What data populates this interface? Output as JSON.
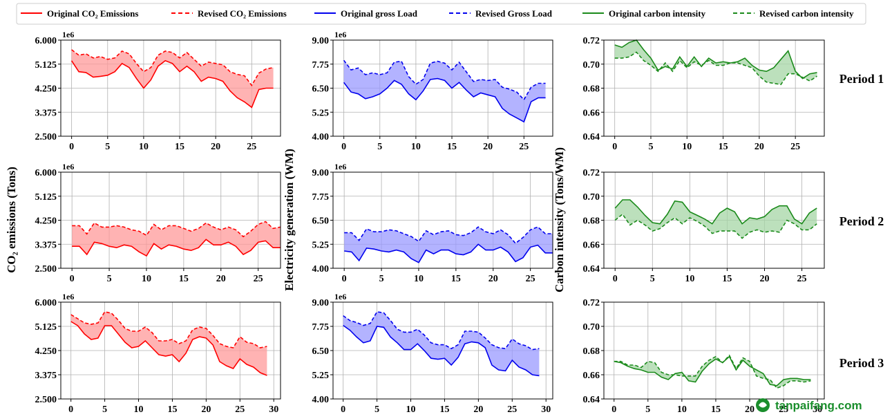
{
  "legend": [
    {
      "label": "Original CO₂ Emissions",
      "color": "#ff0000",
      "dashed": false
    },
    {
      "label": "Revised CO₂ Emissions",
      "color": "#ff0000",
      "dashed": true
    },
    {
      "label": "Original gross Load",
      "color": "#0000ee",
      "dashed": false
    },
    {
      "label": "Revised Gross Load",
      "color": "#0000ee",
      "dashed": true
    },
    {
      "label": "Original carbon intensity",
      "color": "#1a8a1a",
      "dashed": false
    },
    {
      "label": "Revised carbon intensity",
      "color": "#1a8a1a",
      "dashed": true
    }
  ],
  "ylabels": [
    "CO₂ emissions (Tons)",
    "Electricity generation (WM)",
    "Carbon intensity (Tons/WM)"
  ],
  "period_labels": [
    "Period 1",
    "Period 2",
    "Period 3"
  ],
  "watermark": "tanpaifang.com",
  "chart_data": [
    {
      "type": "line",
      "period": "Period 1",
      "ylabel": "CO₂ emissions (Tons)",
      "ylim": [
        2.5,
        6.0
      ],
      "yticks": [
        "2.500",
        "3.375",
        "4.250",
        "5.125",
        "6.000"
      ],
      "xlim": [
        -1.5,
        29
      ],
      "xticks": [
        0,
        5,
        10,
        15,
        20,
        25
      ],
      "exponent": "1e6",
      "color": "#ff0000",
      "fill": "#ff9999",
      "original": [
        5.25,
        4.85,
        4.82,
        4.65,
        4.68,
        4.72,
        4.85,
        5.15,
        5.0,
        4.6,
        4.25,
        4.55,
        5.05,
        5.25,
        5.15,
        4.85,
        5.05,
        4.85,
        4.5,
        4.65,
        4.6,
        4.5,
        4.15,
        3.9,
        3.75,
        3.55,
        4.2,
        4.25,
        4.25
      ],
      "revised": [
        5.65,
        5.45,
        5.5,
        5.35,
        5.4,
        5.3,
        5.35,
        5.6,
        5.5,
        5.15,
        4.85,
        5.0,
        5.45,
        5.6,
        5.55,
        5.35,
        5.55,
        5.3,
        5.05,
        5.2,
        5.15,
        5.1,
        4.85,
        4.75,
        4.7,
        4.35,
        4.8,
        4.95,
        5.0
      ]
    },
    {
      "type": "line",
      "period": "Period 1",
      "ylabel": "Electricity generation (WM)",
      "ylim": [
        4.0,
        9.0
      ],
      "yticks": [
        "4.00",
        "5.25",
        "6.50",
        "7.75",
        "9.00"
      ],
      "xlim": [
        -1.5,
        29
      ],
      "xticks": [
        0,
        5,
        10,
        15,
        20,
        25
      ],
      "exponent": "1e6",
      "color": "#0000ee",
      "fill": "#9999ff",
      "original": [
        6.8,
        6.3,
        6.2,
        5.95,
        6.05,
        6.2,
        6.5,
        6.9,
        6.7,
        6.2,
        5.9,
        6.35,
        6.95,
        7.0,
        6.9,
        6.5,
        6.8,
        6.4,
        6.05,
        6.25,
        6.15,
        6.05,
        5.45,
        5.15,
        4.95,
        4.75,
        5.8,
        6.0,
        6.0
      ],
      "revised": [
        7.95,
        7.45,
        7.55,
        7.2,
        7.3,
        7.2,
        7.3,
        7.85,
        7.9,
        7.1,
        6.7,
        6.95,
        7.8,
        7.9,
        7.8,
        7.45,
        7.85,
        7.35,
        6.85,
        6.95,
        6.9,
        6.95,
        6.55,
        6.45,
        6.3,
        5.9,
        6.55,
        6.75,
        6.75
      ]
    },
    {
      "type": "line",
      "period": "Period 1",
      "ylabel": "Carbon intensity (Tons/WM)",
      "ylim": [
        0.64,
        0.72
      ],
      "yticks": [
        "0.64",
        "0.66",
        "0.68",
        "0.70",
        "0.72"
      ],
      "xlim": [
        -1.5,
        29
      ],
      "xticks": [
        0,
        5,
        10,
        15,
        20,
        25
      ],
      "exponent": "",
      "color": "#1a8a1a",
      "fill": "#a6d6a6",
      "original": [
        0.716,
        0.714,
        0.718,
        0.72,
        0.712,
        0.705,
        0.695,
        0.698,
        0.696,
        0.706,
        0.698,
        0.706,
        0.698,
        0.705,
        0.701,
        0.702,
        0.701,
        0.702,
        0.705,
        0.699,
        0.695,
        0.694,
        0.697,
        0.704,
        0.711,
        0.694,
        0.688,
        0.692,
        0.693
      ],
      "revised": [
        0.705,
        0.705,
        0.706,
        0.71,
        0.703,
        0.699,
        0.694,
        0.701,
        0.694,
        0.703,
        0.697,
        0.702,
        0.699,
        0.703,
        0.699,
        0.699,
        0.701,
        0.701,
        0.699,
        0.697,
        0.69,
        0.685,
        0.684,
        0.683,
        0.692,
        0.692,
        0.689,
        0.686,
        0.69
      ]
    },
    {
      "type": "line",
      "period": "Period 2",
      "ylabel": "CO₂ emissions (Tons)",
      "ylim": [
        2.5,
        6.0
      ],
      "yticks": [
        "2.500",
        "3.375",
        "4.250",
        "5.125",
        "6.000"
      ],
      "xlim": [
        -1.5,
        28
      ],
      "xticks": [
        0,
        5,
        10,
        15,
        20,
        25
      ],
      "exponent": "1e6",
      "color": "#ff0000",
      "fill": "#ff9999",
      "original": [
        3.3,
        3.3,
        3.0,
        3.45,
        3.4,
        3.3,
        3.25,
        3.35,
        3.3,
        3.1,
        2.95,
        3.4,
        3.2,
        3.35,
        3.3,
        3.2,
        3.15,
        3.25,
        3.55,
        3.35,
        3.35,
        3.45,
        3.3,
        3.0,
        3.15,
        3.45,
        3.5,
        3.25,
        3.25
      ],
      "revised": [
        4.05,
        4.05,
        3.75,
        4.15,
        4.0,
        4.0,
        4.05,
        4.0,
        3.9,
        3.85,
        3.7,
        4.1,
        3.9,
        4.05,
        4.05,
        3.95,
        3.85,
        3.95,
        4.15,
        4.0,
        3.9,
        4.0,
        3.9,
        3.65,
        3.85,
        4.1,
        4.2,
        3.95,
        4.0
      ]
    },
    {
      "type": "line",
      "period": "Period 2",
      "ylabel": "Electricity generation (WM)",
      "ylim": [
        4.0,
        9.0
      ],
      "yticks": [
        "4.00",
        "5.25",
        "6.50",
        "7.75",
        "9.00"
      ],
      "xlim": [
        -1.5,
        28
      ],
      "xticks": [
        0,
        5,
        10,
        15,
        20,
        25
      ],
      "exponent": "1e6",
      "color": "#0000ee",
      "fill": "#9999ff",
      "original": [
        4.9,
        4.85,
        4.4,
        5.05,
        5.0,
        4.9,
        4.85,
        4.95,
        4.85,
        4.5,
        4.3,
        4.95,
        4.75,
        4.95,
        4.95,
        4.75,
        4.7,
        4.85,
        5.25,
        4.95,
        4.95,
        5.1,
        4.85,
        4.35,
        4.55,
        5.1,
        5.2,
        4.8,
        4.8
      ],
      "revised": [
        5.85,
        5.85,
        5.45,
        6.05,
        5.9,
        5.9,
        6.0,
        5.95,
        5.8,
        5.65,
        5.4,
        5.95,
        5.75,
        5.9,
        5.95,
        5.75,
        5.7,
        5.85,
        6.15,
        5.9,
        5.8,
        6.0,
        5.75,
        5.3,
        5.6,
        6.0,
        6.15,
        5.8,
        5.8
      ]
    },
    {
      "type": "line",
      "period": "Period 2",
      "ylabel": "Carbon intensity (Tons/WM)",
      "ylim": [
        0.64,
        0.72
      ],
      "yticks": [
        "0.64",
        "0.66",
        "0.68",
        "0.70",
        "0.72"
      ],
      "xlim": [
        -1.5,
        28
      ],
      "xticks": [
        0,
        5,
        10,
        15,
        20,
        25
      ],
      "exponent": "",
      "color": "#1a8a1a",
      "fill": "#a6d6a6",
      "original": [
        0.69,
        0.697,
        0.697,
        0.691,
        0.684,
        0.678,
        0.677,
        0.685,
        0.696,
        0.695,
        0.687,
        0.684,
        0.681,
        0.677,
        0.686,
        0.69,
        0.687,
        0.677,
        0.682,
        0.681,
        0.683,
        0.689,
        0.692,
        0.692,
        0.681,
        0.677,
        0.686,
        0.69
      ],
      "revised": [
        0.68,
        0.685,
        0.676,
        0.68,
        0.676,
        0.671,
        0.673,
        0.678,
        0.682,
        0.677,
        0.682,
        0.679,
        0.675,
        0.669,
        0.671,
        0.671,
        0.671,
        0.665,
        0.67,
        0.672,
        0.67,
        0.671,
        0.67,
        0.68,
        0.677,
        0.672,
        0.672,
        0.677
      ]
    },
    {
      "type": "line",
      "period": "Period 3",
      "ylabel": "CO₂ emissions (Tons)",
      "ylim": [
        2.5,
        6.0
      ],
      "yticks": [
        "2.500",
        "3.375",
        "4.250",
        "5.125",
        "6.000"
      ],
      "xlim": [
        -1.5,
        31
      ],
      "xticks": [
        0,
        5,
        10,
        15,
        20,
        25,
        30
      ],
      "exponent": "1e6",
      "color": "#ff0000",
      "fill": "#ff9999",
      "original": [
        5.3,
        5.15,
        4.85,
        4.65,
        4.7,
        5.15,
        5.15,
        4.85,
        4.55,
        4.35,
        4.4,
        4.6,
        4.35,
        4.1,
        4.05,
        4.1,
        3.85,
        4.15,
        4.65,
        4.75,
        4.7,
        4.45,
        3.85,
        3.7,
        3.6,
        3.95,
        3.75,
        3.65,
        3.45,
        3.35
      ],
      "revised": [
        5.55,
        5.4,
        5.25,
        5.2,
        5.25,
        5.65,
        5.6,
        5.35,
        5.05,
        4.95,
        4.95,
        5.1,
        4.9,
        4.6,
        4.6,
        4.65,
        4.5,
        4.6,
        5.0,
        5.1,
        5.05,
        4.8,
        4.5,
        4.4,
        4.35,
        4.75,
        4.55,
        4.5,
        4.35,
        4.4
      ]
    },
    {
      "type": "line",
      "period": "Period 3",
      "ylabel": "Electricity generation (WM)",
      "ylim": [
        4.0,
        9.0
      ],
      "yticks": [
        "4.00",
        "5.25",
        "6.50",
        "7.75",
        "9.00"
      ],
      "xlim": [
        -1.5,
        31
      ],
      "xticks": [
        0,
        5,
        10,
        15,
        20,
        25,
        30
      ],
      "exponent": "1e6",
      "color": "#0000ee",
      "fill": "#9999ff",
      "original": [
        7.8,
        7.55,
        7.2,
        6.9,
        7.0,
        7.75,
        7.7,
        7.2,
        6.9,
        6.55,
        6.55,
        6.85,
        6.5,
        6.1,
        6.05,
        6.1,
        5.75,
        6.15,
        6.85,
        6.95,
        6.9,
        6.65,
        5.75,
        5.5,
        5.45,
        6.0,
        5.65,
        5.5,
        5.25,
        5.2
      ],
      "revised": [
        8.3,
        8.05,
        7.95,
        7.8,
        7.9,
        8.5,
        8.45,
        8.05,
        7.6,
        7.45,
        7.45,
        7.6,
        7.3,
        6.9,
        6.8,
        6.8,
        6.6,
        6.8,
        7.5,
        7.5,
        7.45,
        7.15,
        6.8,
        6.65,
        6.6,
        7.1,
        6.85,
        6.75,
        6.55,
        6.6
      ]
    },
    {
      "type": "line",
      "period": "Period 3",
      "ylabel": "Carbon intensity (Tons/WM)",
      "ylim": [
        0.64,
        0.72
      ],
      "yticks": [
        "0.64",
        "0.66",
        "0.68",
        "0.70",
        "0.72"
      ],
      "xlim": [
        -1.5,
        31
      ],
      "xticks": [
        0,
        5,
        10,
        15,
        20,
        25,
        30
      ],
      "exponent": "",
      "color": "#1a8a1a",
      "fill": "#a6d6a6",
      "original": [
        0.671,
        0.67,
        0.667,
        0.665,
        0.664,
        0.662,
        0.662,
        0.658,
        0.656,
        0.661,
        0.662,
        0.655,
        0.654,
        0.663,
        0.669,
        0.673,
        0.67,
        0.675,
        0.664,
        0.672,
        0.667,
        0.664,
        0.661,
        0.652,
        0.651,
        0.656,
        0.657,
        0.657,
        0.656,
        0.656
      ],
      "revised": [
        0.671,
        0.671,
        0.668,
        0.668,
        0.666,
        0.671,
        0.67,
        0.662,
        0.66,
        0.66,
        0.659,
        0.659,
        0.659,
        0.667,
        0.672,
        0.675,
        0.67,
        0.676,
        0.665,
        0.674,
        0.671,
        0.659,
        0.657,
        0.656,
        0.649,
        0.651,
        0.655,
        0.655,
        0.654,
        0.655
      ]
    }
  ]
}
